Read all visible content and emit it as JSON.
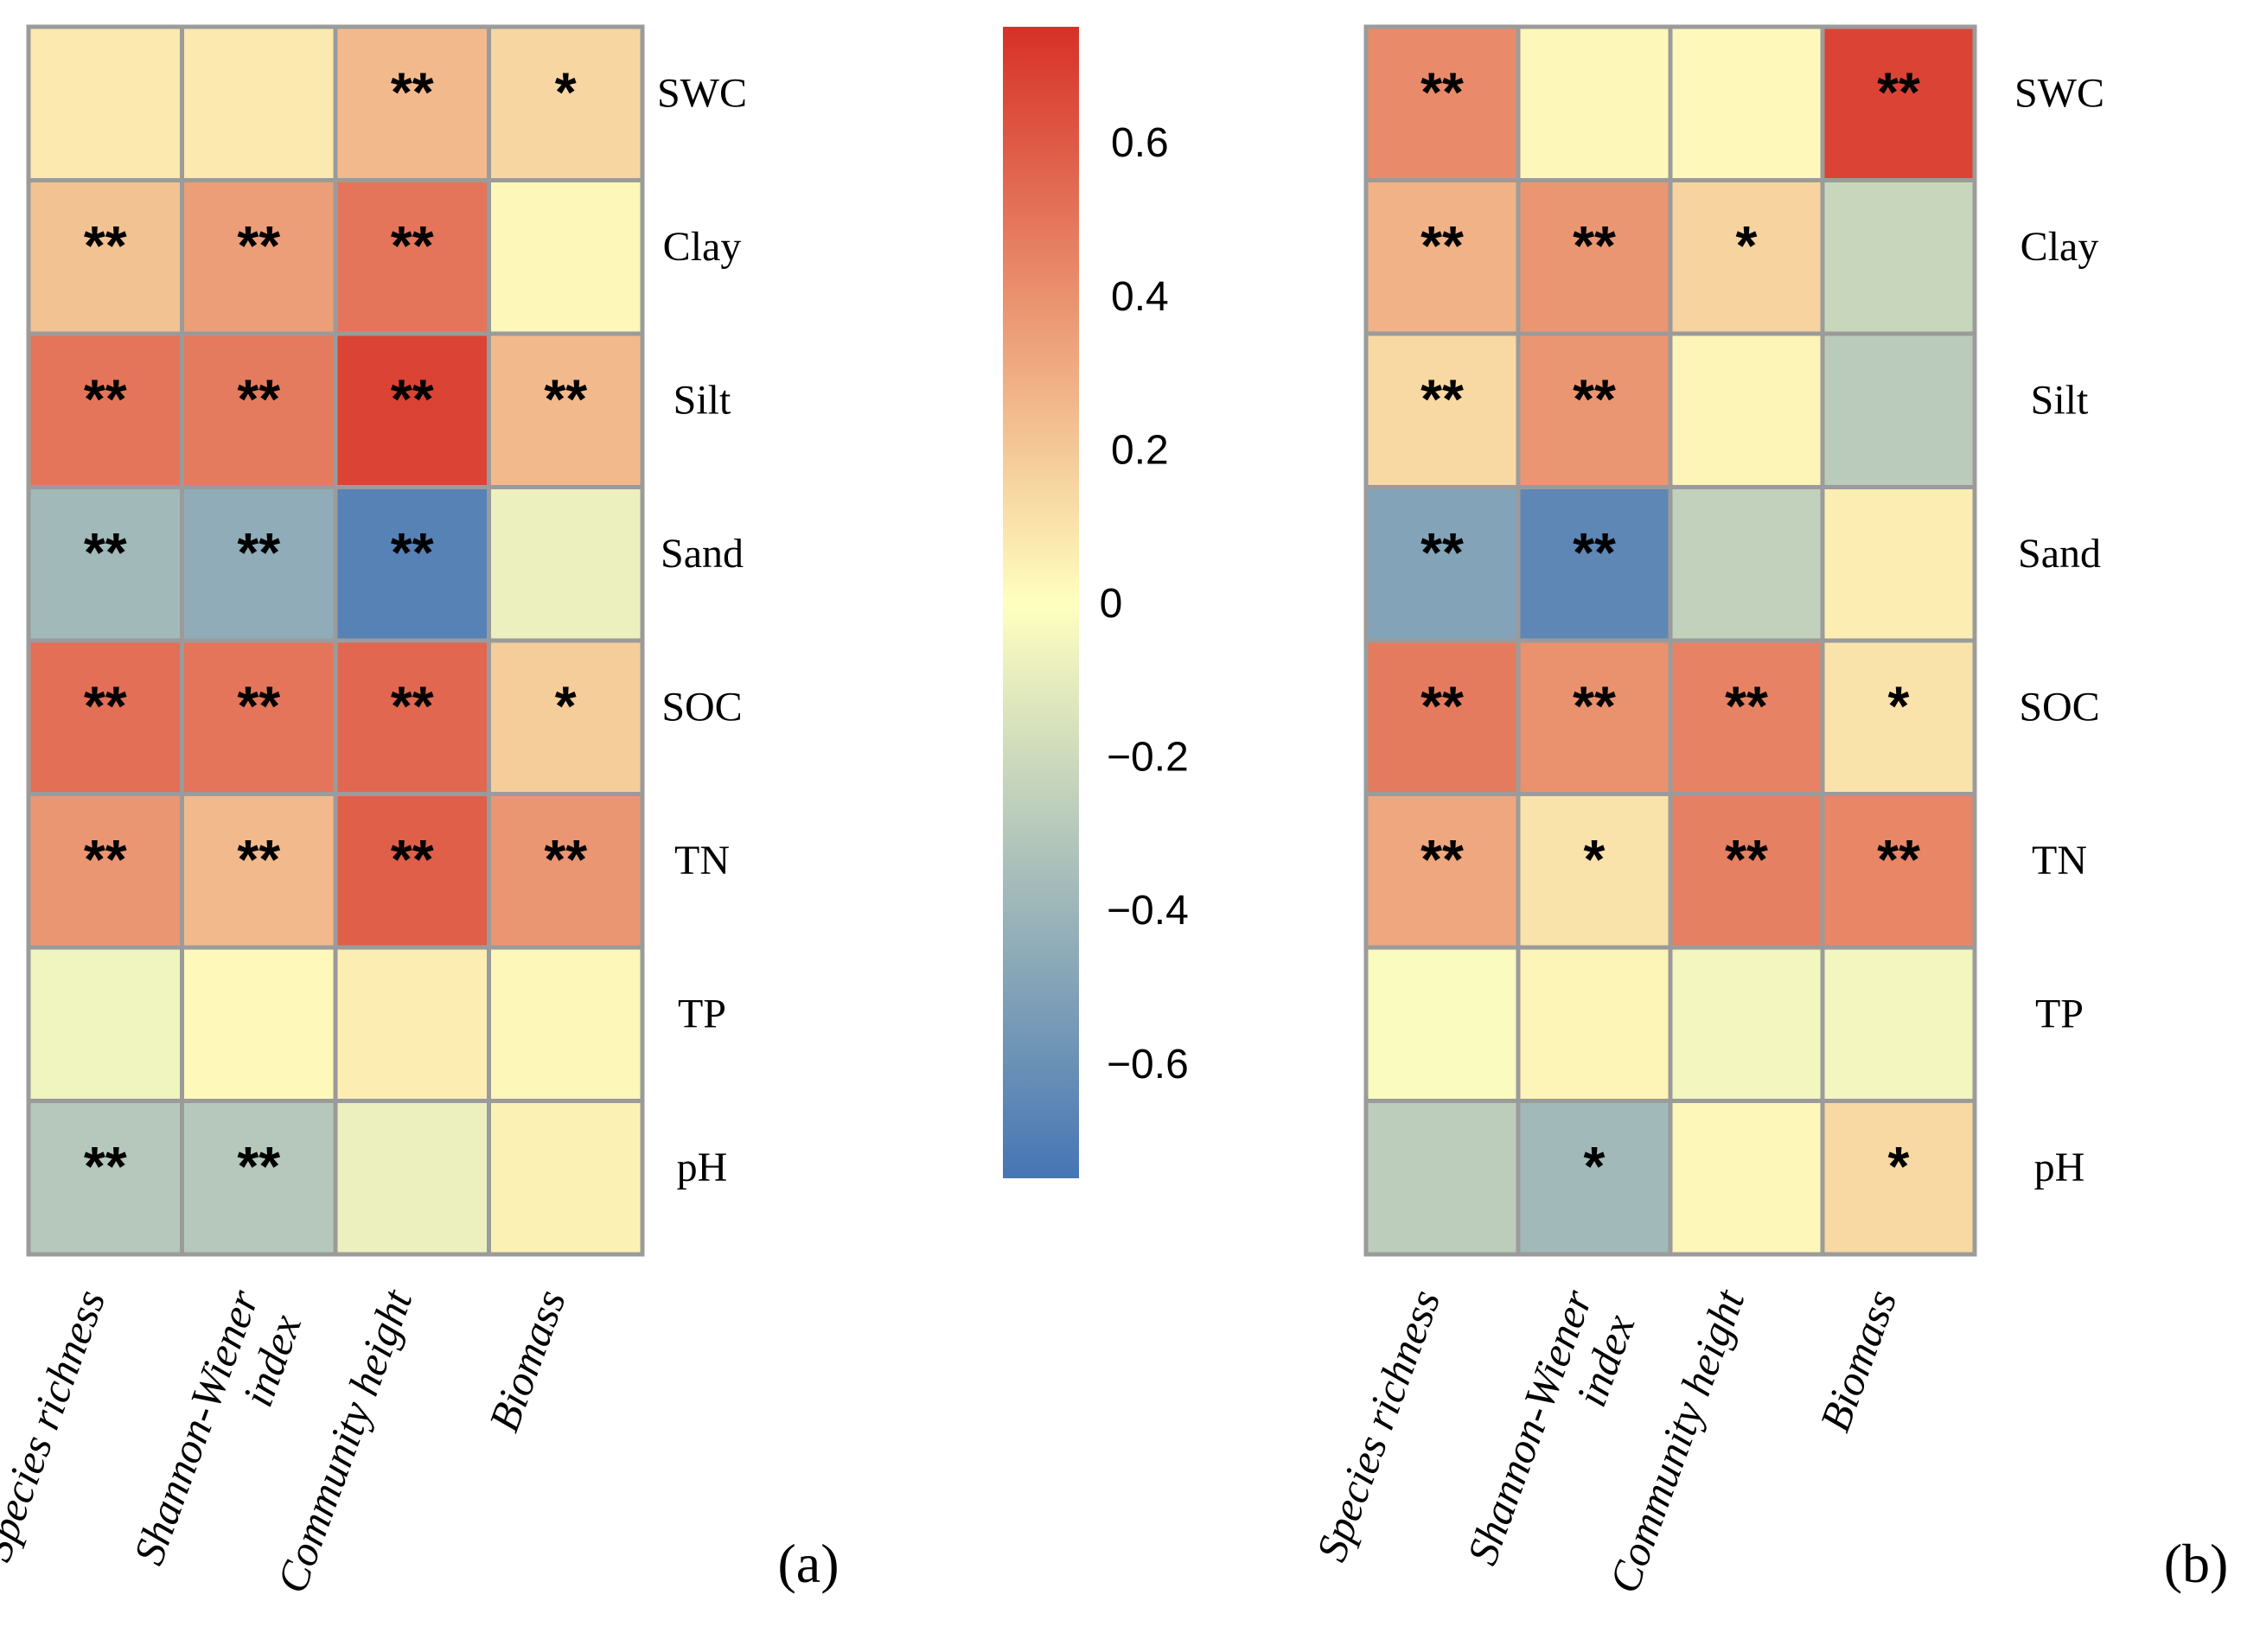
{
  "chart_data": [
    {
      "type": "heatmap",
      "panel_label": "(a)",
      "rows": [
        "SWC",
        "Clay",
        "Silt",
        "Sand",
        "SOC",
        "TN",
        "TP",
        "pH"
      ],
      "columns": [
        [
          "Species richness"
        ],
        [
          "Shannon-Wiener",
          "index"
        ],
        [
          "Community height"
        ],
        [
          "Biomass"
        ]
      ],
      "values": [
        [
          0.08,
          0.08,
          0.25,
          0.15
        ],
        [
          0.22,
          0.35,
          0.5,
          0.03
        ],
        [
          0.5,
          0.48,
          0.68,
          0.25
        ],
        [
          -0.38,
          -0.45,
          -0.68,
          -0.08
        ],
        [
          0.52,
          0.5,
          0.55,
          0.18
        ],
        [
          0.38,
          0.25,
          0.58,
          0.38
        ],
        [
          -0.06,
          0.02,
          0.06,
          0.03
        ],
        [
          -0.3,
          -0.3,
          -0.08,
          0.05
        ]
      ],
      "significance": [
        [
          "",
          "",
          "**",
          "*"
        ],
        [
          "**",
          "**",
          "**",
          ""
        ],
        [
          "**",
          "**",
          "**",
          "**"
        ],
        [
          "**",
          "**",
          "**",
          ""
        ],
        [
          "**",
          "**",
          "**",
          "*"
        ],
        [
          "**",
          "**",
          "**",
          "**"
        ],
        [
          "",
          "",
          "",
          ""
        ],
        [
          "**",
          "**",
          "",
          ""
        ]
      ]
    },
    {
      "type": "heatmap",
      "panel_label": "(b)",
      "rows": [
        "SWC",
        "Clay",
        "Silt",
        "Sand",
        "SOC",
        "TN",
        "TP",
        "pH"
      ],
      "columns": [
        [
          "Species richness"
        ],
        [
          "Shannon-Wiener",
          "index"
        ],
        [
          "Community height"
        ],
        [
          "Biomass"
        ]
      ],
      "values": [
        [
          0.42,
          0.03,
          0.02,
          0.68
        ],
        [
          0.28,
          0.38,
          0.16,
          -0.22
        ],
        [
          0.14,
          0.38,
          0.04,
          -0.28
        ],
        [
          -0.5,
          -0.65,
          -0.25,
          0.06
        ],
        [
          0.48,
          0.4,
          0.45,
          0.1
        ],
        [
          0.32,
          0.1,
          0.46,
          0.44
        ],
        [
          -0.02,
          0.04,
          -0.05,
          -0.05
        ],
        [
          -0.27,
          -0.38,
          0.03,
          0.14
        ]
      ],
      "significance": [
        [
          "**",
          "",
          "",
          "**"
        ],
        [
          "**",
          "**",
          "*",
          ""
        ],
        [
          "**",
          "**",
          "",
          ""
        ],
        [
          "**",
          "**",
          "",
          ""
        ],
        [
          "**",
          "**",
          "**",
          "*"
        ],
        [
          "**",
          "*",
          "**",
          "**"
        ],
        [
          "",
          "",
          "",
          ""
        ],
        [
          "",
          "*",
          "",
          "*"
        ]
      ]
    }
  ],
  "colorbar": {
    "range": [
      -0.75,
      0.75
    ],
    "ticks": [
      0.6,
      0.4,
      0.2,
      0,
      -0.2,
      -0.4,
      -0.6
    ],
    "tick_labels": [
      "0.6",
      "0.4",
      "0.2",
      "0",
      "−0.2",
      "−0.4",
      "−0.6"
    ],
    "colors": {
      "low": "#4575b4",
      "mid": "#ffffbf",
      "high": "#d73027"
    }
  }
}
